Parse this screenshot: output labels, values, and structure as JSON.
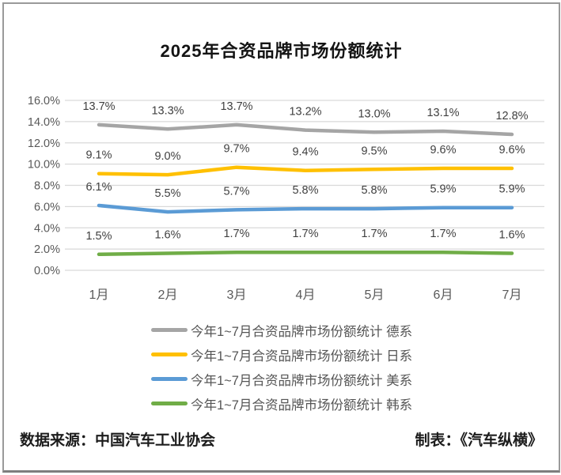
{
  "chart_data": {
    "type": "line",
    "title": "2025年合资品牌市场份额统计",
    "categories": [
      "1月",
      "2月",
      "3月",
      "4月",
      "5月",
      "6月",
      "7月"
    ],
    "series": [
      {
        "name": "今年1~7月合资品牌市场份额统计 德系",
        "short_name": "德系",
        "color": "#a5a5a5",
        "values": [
          13.7,
          13.3,
          13.7,
          13.2,
          13.0,
          13.1,
          12.8
        ]
      },
      {
        "name": "今年1~7月合资品牌市场份额统计 日系",
        "short_name": "日系",
        "color": "#ffc000",
        "values": [
          9.1,
          9.0,
          9.7,
          9.4,
          9.5,
          9.6,
          9.6
        ]
      },
      {
        "name": "今年1~7月合资品牌市场份额统计 美系",
        "short_name": "美系",
        "color": "#5b9bd5",
        "values": [
          6.1,
          5.5,
          5.7,
          5.8,
          5.8,
          5.9,
          5.9
        ]
      },
      {
        "name": "今年1~7月合资品牌市场份额统计 韩系",
        "short_name": "韩系",
        "color": "#70ad47",
        "values": [
          1.5,
          1.6,
          1.7,
          1.7,
          1.7,
          1.7,
          1.6
        ]
      }
    ],
    "y_ticks": [
      {
        "v": 0,
        "label": "0.0%"
      },
      {
        "v": 2,
        "label": "2.0%"
      },
      {
        "v": 4,
        "label": "4.0%"
      },
      {
        "v": 6,
        "label": "6.0%"
      },
      {
        "v": 8,
        "label": "8.0%"
      },
      {
        "v": 10,
        "label": "10.0%"
      },
      {
        "v": 12,
        "label": "12.0%"
      },
      {
        "v": 14,
        "label": "14.0%"
      },
      {
        "v": 16,
        "label": "16.0%"
      }
    ],
    "ylim": [
      0,
      16
    ],
    "grid": true,
    "legend_position": "bottom",
    "data_label_format": "one_decimal_percent",
    "colors": {
      "gridline": "#d9d9d9",
      "axis_text": "#595959",
      "data_label": "#3f3f3f"
    }
  },
  "footer": {
    "source": "数据来源：中国汽车工业协会",
    "credit": "制表：《汽车纵横》"
  }
}
